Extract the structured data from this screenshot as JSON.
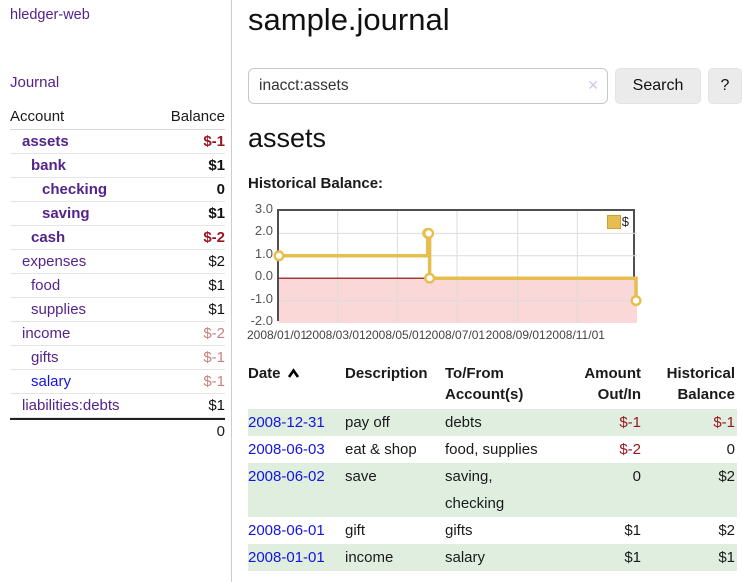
{
  "sidebar": {
    "app_title": "hledger-web",
    "journal_link": "Journal",
    "accounts_header": {
      "account": "Account",
      "balance": "Balance"
    },
    "accounts": [
      {
        "name": "assets",
        "balance": "$-1"
      },
      {
        "name": "bank",
        "balance": "$1"
      },
      {
        "name": "checking",
        "balance": "0"
      },
      {
        "name": "saving",
        "balance": "$1"
      },
      {
        "name": "cash",
        "balance": "$-2"
      },
      {
        "name": "expenses",
        "balance": "$2"
      },
      {
        "name": "food",
        "balance": "$1"
      },
      {
        "name": "supplies",
        "balance": "$1"
      },
      {
        "name": "income",
        "balance": "$-2"
      },
      {
        "name": "gifts",
        "balance": "$-1"
      },
      {
        "name": "salary",
        "balance": "$-1"
      },
      {
        "name": "liabilities:debts",
        "balance": "$1"
      }
    ],
    "total_balance": "0"
  },
  "main": {
    "title": "sample.journal",
    "account_title": "assets"
  },
  "search": {
    "value": "inacct:assets",
    "clear_icon": "✕",
    "button_label": "Search",
    "help_label": "?"
  },
  "chart_data": {
    "type": "line",
    "title": "Historical Balance:",
    "step": true,
    "grid": true,
    "x_range": [
      "2008-01-01",
      "2009-01-01"
    ],
    "ylim": [
      -2,
      3
    ],
    "yticks": [
      3,
      2,
      1,
      0,
      -1,
      -2
    ],
    "xticks": [
      "2008/01/01",
      "2008/03/01",
      "2008/05/01",
      "2008/07/01",
      "2008/09/01",
      "2008/11/01"
    ],
    "series": [
      {
        "name": "$",
        "color": "#e6be50",
        "marker_fill": "#ffffff",
        "points": [
          {
            "x": "2008-01-01",
            "y": 1
          },
          {
            "x": "2008-06-01",
            "y": 2
          },
          {
            "x": "2008-06-02",
            "y": 2
          },
          {
            "x": "2008-06-03",
            "y": 0
          },
          {
            "x": "2008-12-31",
            "y": -1
          }
        ]
      }
    ],
    "legend": {
      "label": "$",
      "position": "top-right",
      "swatch_color": "#e6be50"
    },
    "negative_region_color": "#fad8d8",
    "zero_line_color": "#8b0000"
  },
  "table": {
    "headers": {
      "date": "Date",
      "description": "Description",
      "accounts": "To/From Account(s)",
      "amount": "Amount Out/In",
      "balance": "Historical Balance"
    },
    "rows": [
      {
        "date": "2008-12-31",
        "description": "pay off",
        "accounts": "debts",
        "amount": "$-1",
        "balance": "$-1"
      },
      {
        "date": "2008-06-03",
        "description": "eat & shop",
        "accounts": "food, supplies",
        "amount": "$-2",
        "balance": "0"
      },
      {
        "date": "2008-06-02",
        "description": "save",
        "accounts": "saving, checking",
        "amount": "0",
        "balance": "$2"
      },
      {
        "date": "2008-06-01",
        "description": "gift",
        "accounts": "gifts",
        "amount": "$1",
        "balance": "$2"
      },
      {
        "date": "2008-01-01",
        "description": "income",
        "accounts": "salary",
        "amount": "$1",
        "balance": "$1"
      }
    ]
  }
}
